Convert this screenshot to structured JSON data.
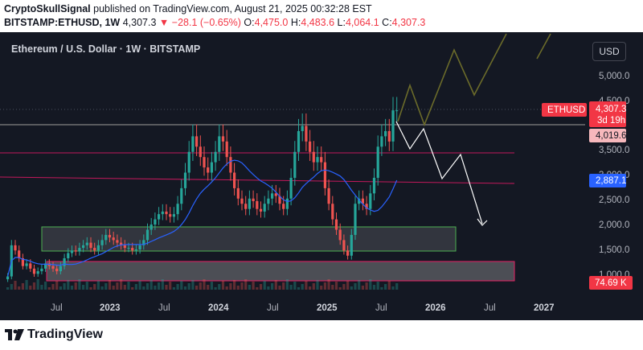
{
  "header": {
    "author": "CryptoSkullSignal",
    "published_text": "published on TradingView.com, August 21, 2025 00:32:28 EST",
    "symbol": "BITSTAMP:ETHUSD, 1W",
    "last": "4,307.3",
    "arrow": "▼",
    "change": "−28.1 (−0.65%)",
    "o_label": "O:",
    "o": "4,475.0",
    "h_label": "H:",
    "h": "4,483.6",
    "l_label": "L:",
    "l": "4,064.1",
    "c_label": "C:",
    "c": "4,307.3"
  },
  "chart": {
    "title": "Ethereum / U.S. Dollar · 1W · BITSTAMP",
    "currency_button": "USD",
    "symbol_tag": "ETHUSD",
    "price_label": "4,307.3",
    "countdown": "3d 19h",
    "level_label": "4,019.6",
    "ma_label": "2,887.1",
    "volume_label": "74.69 K",
    "colors": {
      "background": "#141823",
      "up": "#26a69a",
      "down": "#ef5350",
      "ma": "#2962ff",
      "projection_up": "#6b6b2a",
      "projection_down": "#ffffff",
      "price_tag": "#f23645",
      "level_tag": "#f7b8bc"
    }
  },
  "chart_data": {
    "type": "candlestick",
    "price_axis": [
      "5,000.0",
      "4,500.0",
      "3,500.0",
      "3,000.0",
      "2,500.0",
      "2,000.0",
      "1,500.0",
      "1,000.0"
    ],
    "time_axis": [
      "Jul",
      "2023",
      "Jul",
      "2024",
      "Jul",
      "2025",
      "Jul",
      "2026",
      "Jul",
      "2027"
    ],
    "closes": [
      1100,
      1700,
      1600,
      1450,
      1300,
      1350,
      1250,
      1150,
      1200,
      1250,
      1350,
      1300,
      1250,
      1200,
      1300,
      1450,
      1550,
      1600,
      1580,
      1650,
      1700,
      1750,
      1650,
      1600,
      1700,
      1800,
      1900,
      1850,
      1800,
      1750,
      1700,
      1650,
      1650,
      1600,
      1620,
      1700,
      1800,
      2000,
      2100,
      2200,
      2300,
      2350,
      2300,
      2250,
      2300,
      2500,
      2800,
      3100,
      3500,
      3800,
      3600,
      3400,
      3200,
      3100,
      3300,
      3500,
      3800,
      3700,
      3400,
      3100,
      2800,
      2600,
      2500,
      2400,
      2600,
      2550,
      2400,
      2350,
      2500,
      2600,
      2700,
      2650,
      2500,
      2400,
      2600,
      3000,
      3500,
      3900,
      4000,
      3700,
      3500,
      3300,
      3400,
      3300,
      2800,
      2500,
      2200,
      2000,
      1800,
      1600,
      1500,
      1900,
      2500,
      2600,
      2500,
      2400,
      2700,
      3000,
      3600,
      3800,
      3900,
      3700,
      4300,
      4300
    ],
    "zones": [
      {
        "name": "demand",
        "top": 1980,
        "bottom": 1480
      },
      {
        "name": "lower",
        "top": 1280,
        "bottom": 880
      }
    ],
    "levels": [
      4019.6,
      3450,
      2880
    ]
  },
  "footer": {
    "brand": "TradingView"
  }
}
